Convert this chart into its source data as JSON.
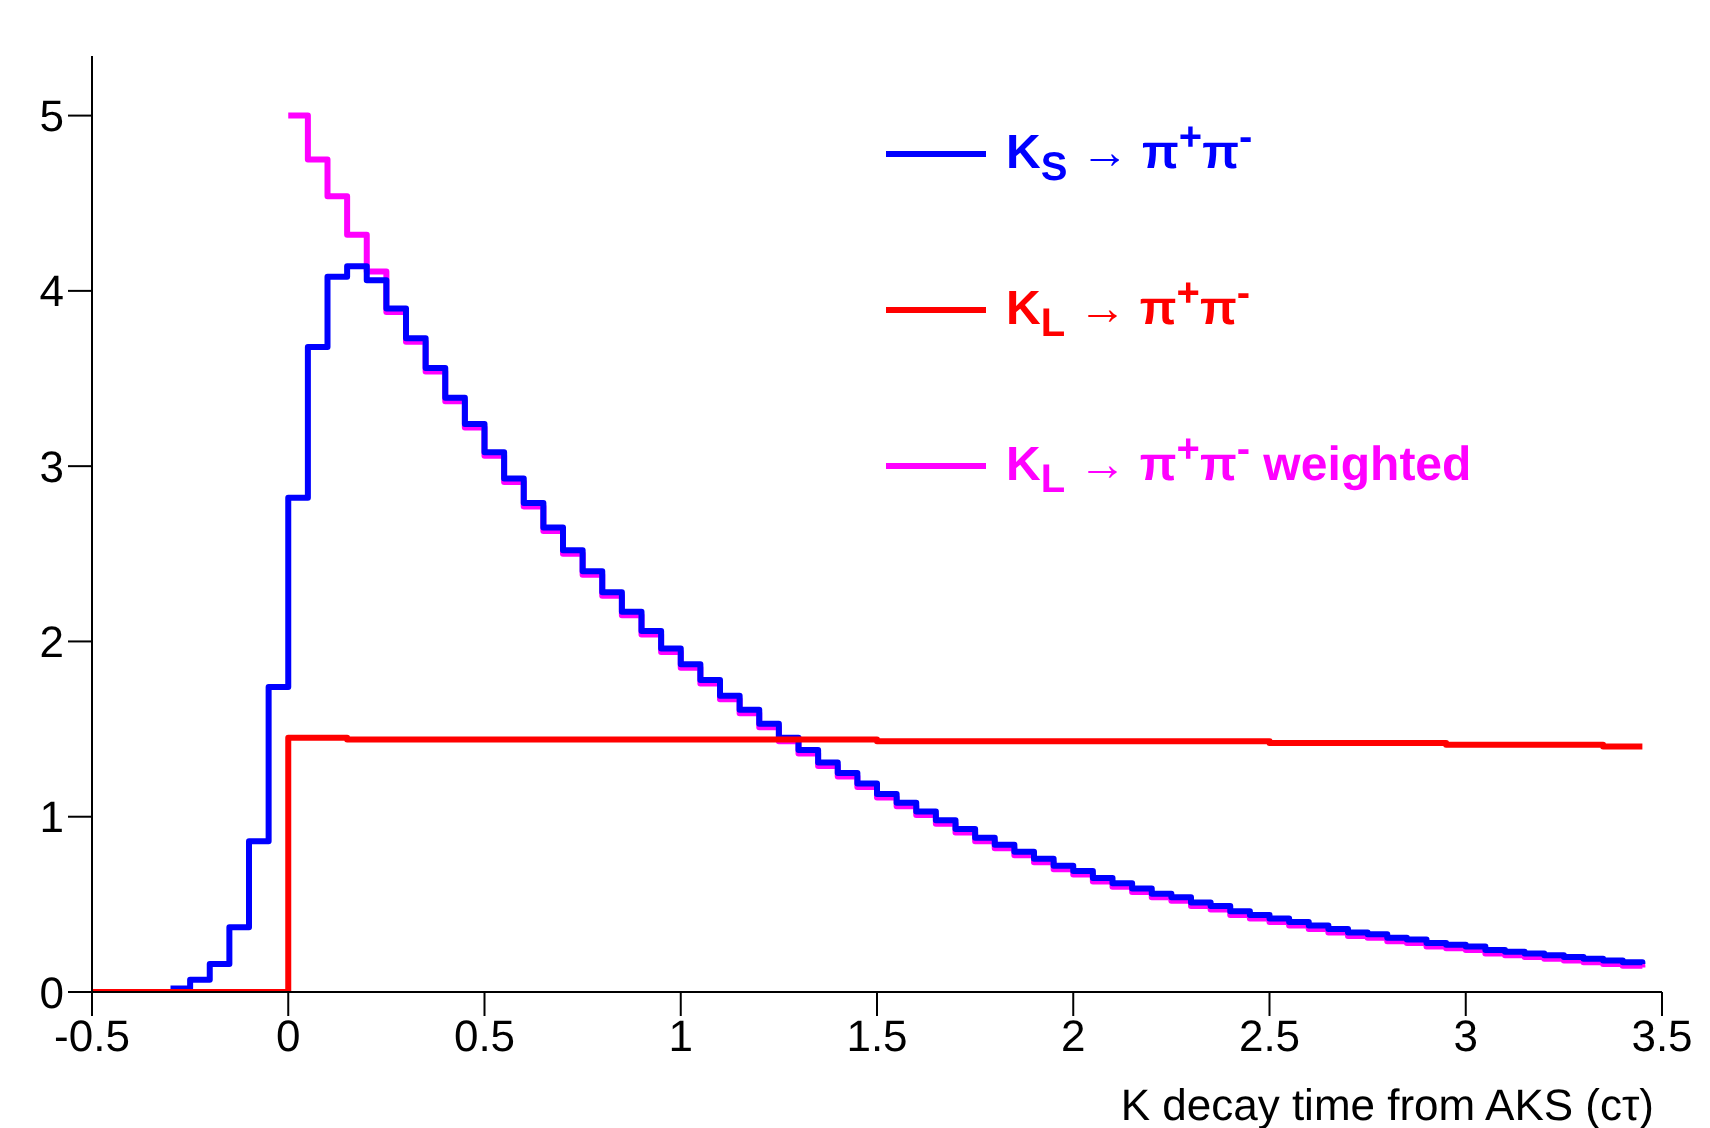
{
  "chart_data": {
    "type": "step",
    "xlabel": "K decay time from AKS (cτ)",
    "x": [
      -0.5,
      -0.45,
      -0.4,
      -0.35,
      -0.3,
      -0.25,
      -0.2,
      -0.15,
      -0.1,
      -0.05,
      0,
      0.05,
      0.1,
      0.15,
      0.2,
      0.25,
      0.3,
      0.35,
      0.4,
      0.45,
      0.5,
      0.55,
      0.6,
      0.65,
      0.7,
      0.75,
      0.8,
      0.85,
      0.9,
      0.95,
      1,
      1.05,
      1.1,
      1.15,
      1.2,
      1.25,
      1.3,
      1.35,
      1.4,
      1.45,
      1.5,
      1.55,
      1.6,
      1.65,
      1.7,
      1.75,
      1.8,
      1.85,
      1.9,
      1.95,
      2,
      2.05,
      2.1,
      2.15,
      2.2,
      2.25,
      2.3,
      2.35,
      2.4,
      2.45,
      2.5,
      2.55,
      2.6,
      2.65,
      2.7,
      2.75,
      2.8,
      2.85,
      2.9,
      2.95,
      3,
      3.05,
      3.1,
      3.15,
      3.2,
      3.25,
      3.3,
      3.35,
      3.4,
      3.45
    ],
    "series": [
      {
        "name": "K$_{L}$ → π$^{+}$π$^{-}$ weighted",
        "color": "#ff00ff",
        "values": [
          null,
          null,
          null,
          null,
          null,
          null,
          null,
          null,
          null,
          null,
          5.0,
          4.75,
          4.54,
          4.32,
          4.11,
          3.88,
          3.71,
          3.54,
          3.37,
          3.22,
          3.06,
          2.91,
          2.77,
          2.63,
          2.5,
          2.38,
          2.26,
          2.15,
          2.04,
          1.94,
          1.85,
          1.76,
          1.67,
          1.59,
          1.51,
          1.43,
          1.36,
          1.29,
          1.23,
          1.17,
          1.11,
          1.06,
          1.01,
          0.96,
          0.91,
          0.86,
          0.82,
          0.78,
          0.74,
          0.7,
          0.67,
          0.63,
          0.6,
          0.57,
          0.54,
          0.52,
          0.49,
          0.47,
          0.44,
          0.42,
          0.4,
          0.38,
          0.36,
          0.34,
          0.32,
          0.31,
          0.29,
          0.28,
          0.26,
          0.25,
          0.24,
          0.22,
          0.21,
          0.2,
          0.19,
          0.18,
          0.17,
          0.16,
          0.15,
          0.14
        ]
      },
      {
        "name": "K$_{S}$ → π$^{+}$π$^{-}$",
        "color": "#0000ff",
        "values": [
          null,
          null,
          null,
          null,
          0.02,
          0.07,
          0.16,
          0.37,
          0.86,
          1.74,
          2.82,
          3.68,
          4.08,
          4.14,
          4.06,
          3.9,
          3.73,
          3.56,
          3.39,
          3.24,
          3.08,
          2.93,
          2.79,
          2.65,
          2.52,
          2.4,
          2.28,
          2.17,
          2.06,
          1.96,
          1.87,
          1.78,
          1.69,
          1.61,
          1.53,
          1.45,
          1.38,
          1.31,
          1.25,
          1.19,
          1.13,
          1.08,
          1.03,
          0.98,
          0.93,
          0.88,
          0.84,
          0.8,
          0.76,
          0.72,
          0.69,
          0.65,
          0.62,
          0.59,
          0.56,
          0.54,
          0.51,
          0.49,
          0.46,
          0.44,
          0.42,
          0.4,
          0.38,
          0.36,
          0.34,
          0.33,
          0.31,
          0.3,
          0.28,
          0.27,
          0.26,
          0.24,
          0.23,
          0.22,
          0.21,
          0.2,
          0.19,
          0.18,
          0.17,
          0.16
        ]
      },
      {
        "name": "K$_{L}$ → π$^{+}$π$^{-}$",
        "color": "#ff0000",
        "values": [
          0,
          0,
          0,
          0,
          0,
          0,
          0,
          0,
          0,
          0,
          1.45,
          1.45,
          1.45,
          1.44,
          1.44,
          1.44,
          1.44,
          1.44,
          1.44,
          1.44,
          1.44,
          1.44,
          1.44,
          1.44,
          1.44,
          1.44,
          1.44,
          1.44,
          1.44,
          1.44,
          1.44,
          1.44,
          1.44,
          1.44,
          1.44,
          1.44,
          1.44,
          1.44,
          1.44,
          1.44,
          1.43,
          1.43,
          1.43,
          1.43,
          1.43,
          1.43,
          1.43,
          1.43,
          1.43,
          1.43,
          1.43,
          1.43,
          1.43,
          1.43,
          1.43,
          1.43,
          1.43,
          1.43,
          1.43,
          1.43,
          1.42,
          1.42,
          1.42,
          1.42,
          1.42,
          1.42,
          1.42,
          1.42,
          1.42,
          1.41,
          1.41,
          1.41,
          1.41,
          1.41,
          1.41,
          1.41,
          1.41,
          1.4,
          1.4,
          1.4
        ]
      }
    ],
    "xlim": [
      -0.5,
      3.5
    ],
    "xticks": [
      -0.5,
      0,
      0.5,
      1,
      1.5,
      2,
      2.5,
      3,
      3.5
    ],
    "ylim": [
      0,
      5.34
    ],
    "yticks": [
      0,
      1,
      2,
      3,
      4,
      5
    ],
    "grid": false,
    "legend": "top right",
    "marker": "none",
    "line_style": "solid"
  }
}
